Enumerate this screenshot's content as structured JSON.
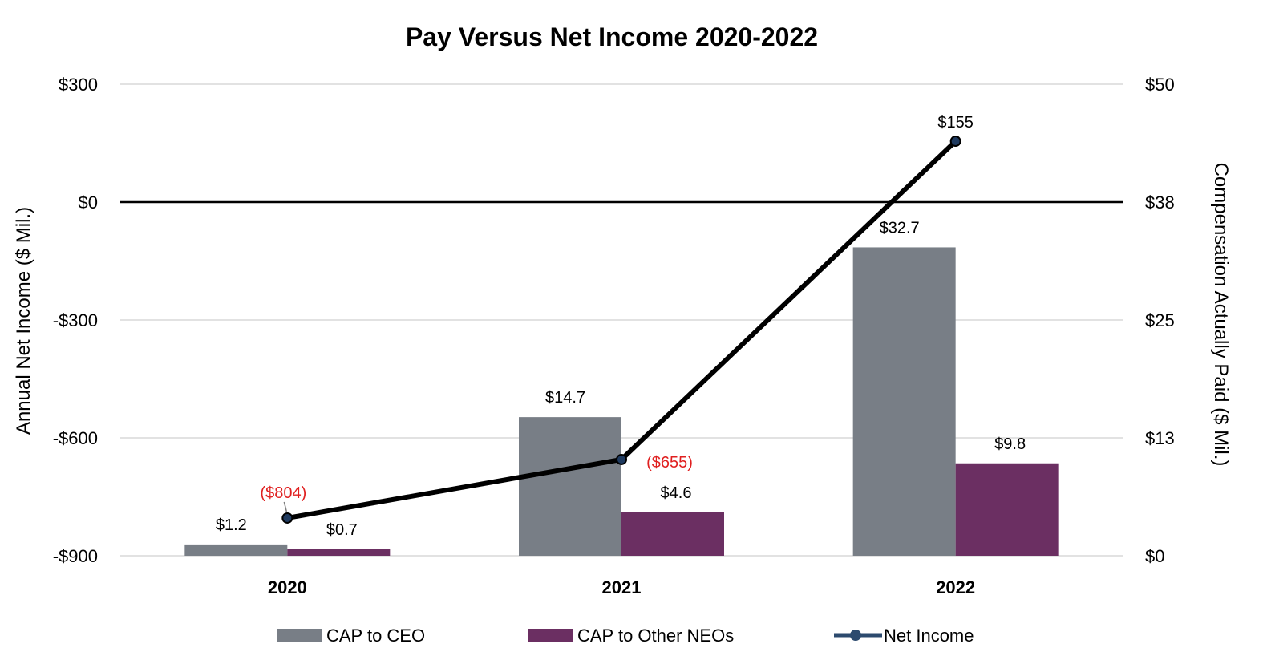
{
  "chart_data": {
    "type": "bar",
    "title": "Pay Versus Net Income 2020-2022",
    "categories": [
      "2020",
      "2021",
      "2022"
    ],
    "y_left": {
      "label": "Annual Net Income ($ Mil.)",
      "range": [
        -900,
        300
      ],
      "ticks": [
        300,
        0,
        -300,
        -600,
        -900
      ],
      "tick_labels": [
        "$300",
        "$0",
        "-$300",
        "-$600",
        "-$900"
      ]
    },
    "y_right": {
      "label": "Compensation Actually Paid ($ Mil.)",
      "range": [
        0,
        50
      ],
      "ticks": [
        50,
        37.5,
        25,
        12.5,
        0
      ],
      "tick_labels": [
        "$50",
        "$38",
        "$25",
        "$13",
        "$0"
      ]
    },
    "series": [
      {
        "name": "CAP to CEO",
        "type": "bar",
        "axis": "right",
        "color": "#787e86",
        "values": [
          1.2,
          14.7,
          32.7
        ],
        "data_labels": [
          "$1.2",
          "$14.7",
          "$32.7"
        ]
      },
      {
        "name": "CAP to Other NEOs",
        "type": "bar",
        "axis": "right",
        "color": "#6b2f62",
        "values": [
          0.7,
          4.6,
          9.8
        ],
        "data_labels": [
          "$0.7",
          "$4.6",
          "$9.8"
        ]
      },
      {
        "name": "Net Income",
        "type": "line",
        "axis": "left",
        "color": "#000000",
        "marker_color": "#1f3a5f",
        "legend_color": "#2c4a6e",
        "values": [
          -804,
          -655,
          155
        ],
        "data_labels": [
          "($804)",
          "($655)",
          "$155"
        ],
        "label_colors": [
          "#e02020",
          "#e02020",
          "#000000"
        ]
      }
    ],
    "zero_line": true,
    "grid": true,
    "legend_position": "bottom"
  }
}
